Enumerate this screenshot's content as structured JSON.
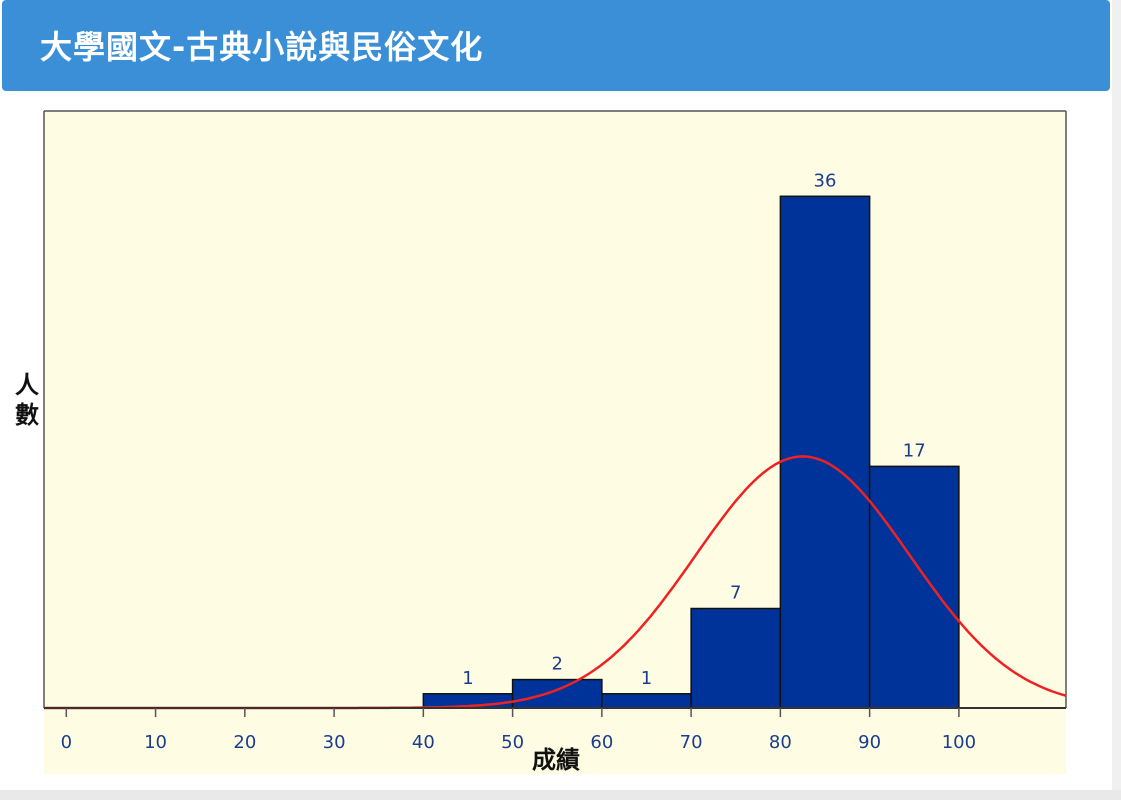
{
  "header": {
    "title": "大學國文-古典小說與民俗文化"
  },
  "colors": {
    "header_bg": "#3a8fd6",
    "plot_bg": "#fefde4",
    "bar_fill": "#003399",
    "curve": "#ee2222",
    "tick_label": "#1a3d8f",
    "value_label": "#1a3d8f"
  },
  "chart_data": {
    "type": "bar",
    "title": "",
    "xlabel": "成績",
    "ylabel": "人數",
    "ylim": [
      0,
      42
    ],
    "xlim": [
      -2.5,
      112
    ],
    "x_ticks": [
      0,
      10,
      20,
      30,
      40,
      50,
      60,
      70,
      80,
      90,
      100
    ],
    "bins": [
      {
        "start": 40,
        "end": 50,
        "count": 1
      },
      {
        "start": 50,
        "end": 60,
        "count": 2
      },
      {
        "start": 60,
        "end": 70,
        "count": 1
      },
      {
        "start": 70,
        "end": 80,
        "count": 7
      },
      {
        "start": 80,
        "end": 90,
        "count": 36
      },
      {
        "start": 90,
        "end": 100,
        "count": 17
      }
    ],
    "curve": {
      "type": "normal",
      "mean": 82.5,
      "sd": 12,
      "peak": 17.7
    },
    "grid": false,
    "legend": "none"
  }
}
